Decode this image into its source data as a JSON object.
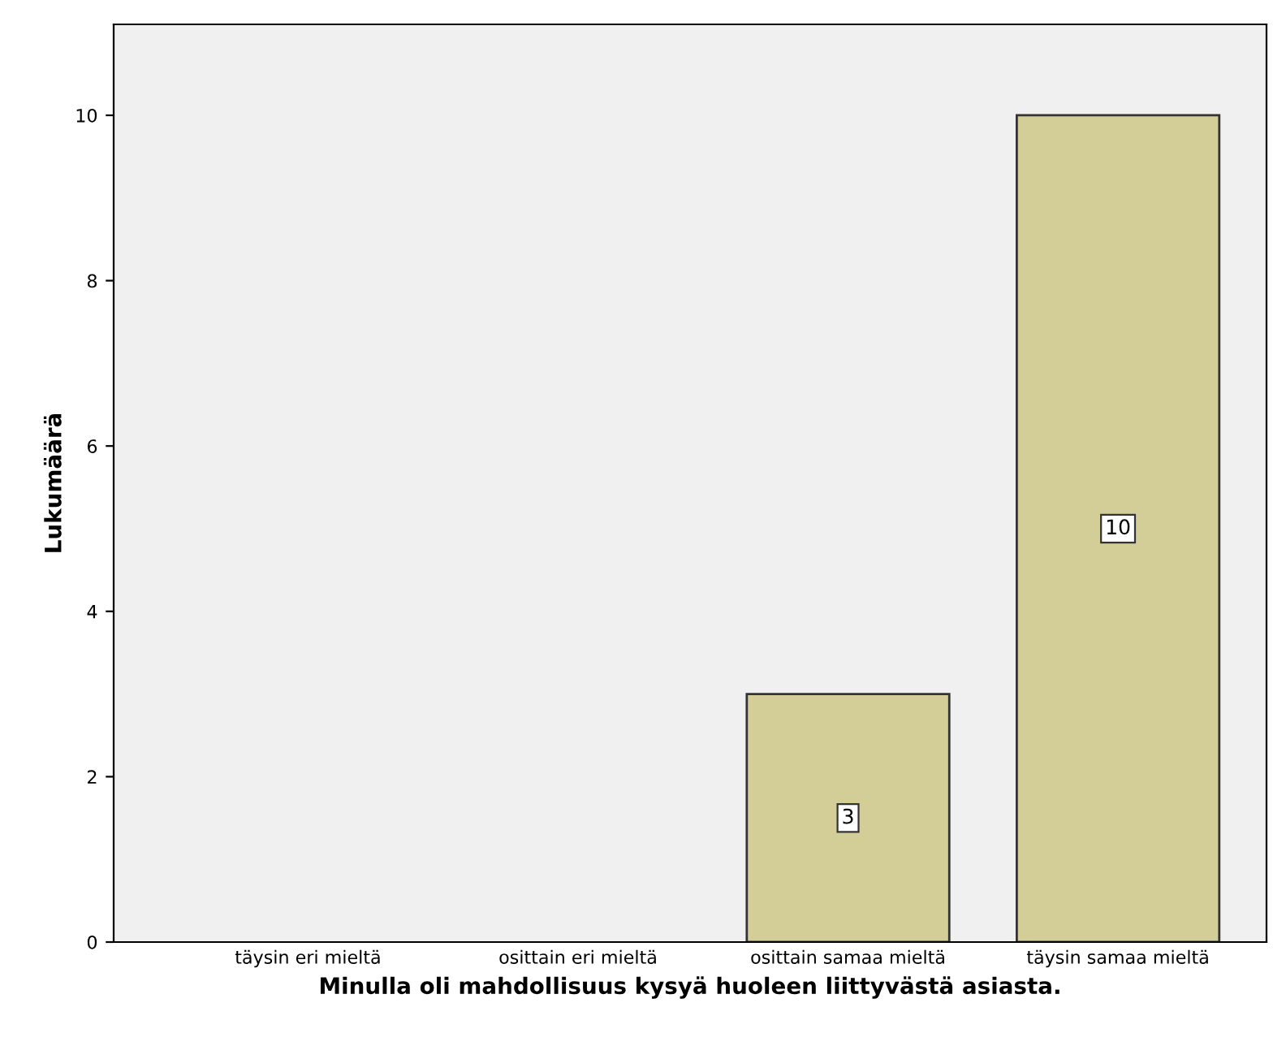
{
  "chart_data": {
    "type": "bar",
    "xlabel": "Minulla oli mahdollisuus kysyä huoleen liittyvästä asiasta.",
    "ylabel": "Lukumäärä",
    "categories": [
      "täysin eri mieltä",
      "osittain eri mieltä",
      "osittain samaa mieltä",
      "täysin samaa mieltä"
    ],
    "values": [
      0,
      0,
      3,
      10
    ],
    "value_labels": [
      null,
      null,
      "3",
      "10"
    ],
    "color": "#d3ce97",
    "ylim": [
      0,
      11.1
    ],
    "yticks": [
      0,
      2,
      4,
      6,
      8,
      10
    ],
    "grid": false,
    "legend": false
  }
}
